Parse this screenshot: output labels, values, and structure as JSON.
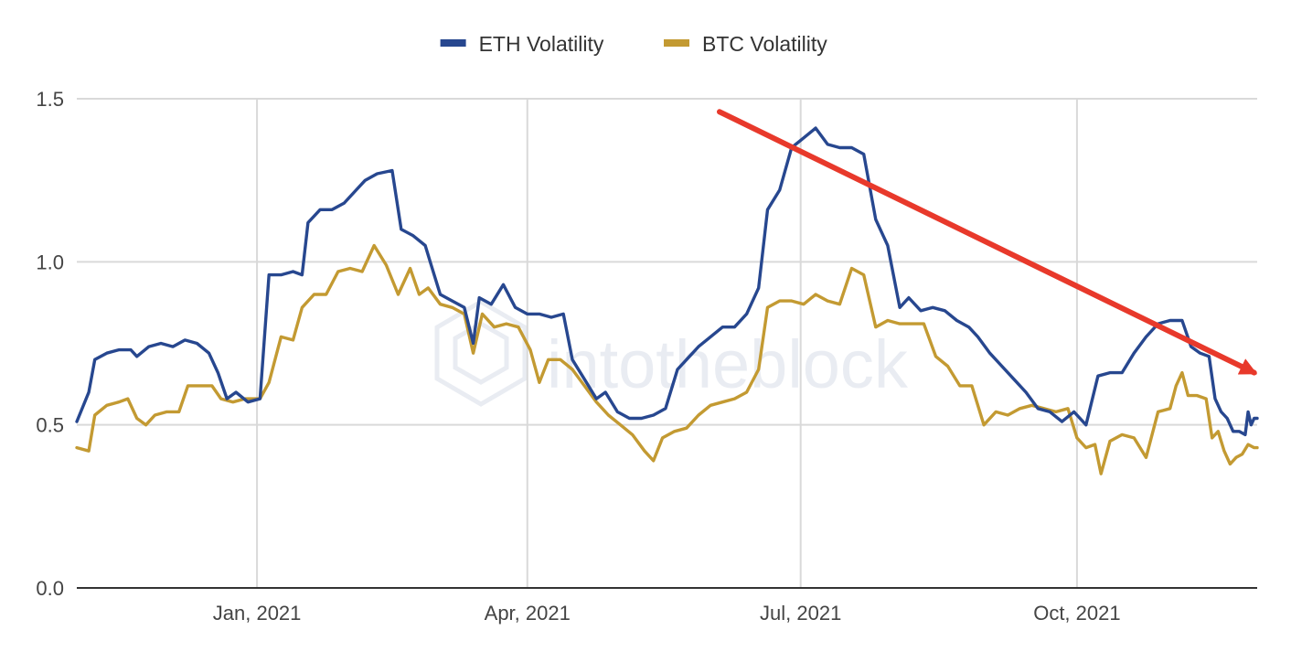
{
  "chart_data": {
    "type": "line",
    "title": "",
    "xlabel": "",
    "ylabel": "",
    "ylim": [
      0,
      1.5
    ],
    "y_ticks": [
      "0.0",
      "0.5",
      "1.0",
      "1.5"
    ],
    "xlim": [
      "2020-11-02",
      "2021-11-30"
    ],
    "x_ticks": [
      {
        "date": "2021-01-01",
        "label": "Jan, 2021"
      },
      {
        "date": "2021-04-01",
        "label": "Apr, 2021"
      },
      {
        "date": "2021-07-01",
        "label": "Jul, 2021"
      },
      {
        "date": "2021-10-01",
        "label": "Oct, 2021"
      }
    ],
    "grid": true,
    "legend_position": "top-center",
    "watermark": "intotheblock",
    "annotation": {
      "type": "arrow",
      "color": "#e8392b",
      "from": {
        "x": "2021-06-04",
        "y": 1.46
      },
      "to": {
        "x": "2021-11-29",
        "y": 0.66
      }
    },
    "series": [
      {
        "name": "ETH Volatility",
        "color": "#27478f",
        "points": [
          [
            "2020-11-02",
            0.51
          ],
          [
            "2020-11-06",
            0.6
          ],
          [
            "2020-11-08",
            0.7
          ],
          [
            "2020-11-12",
            0.72
          ],
          [
            "2020-11-16",
            0.73
          ],
          [
            "2020-11-20",
            0.73
          ],
          [
            "2020-11-22",
            0.71
          ],
          [
            "2020-11-26",
            0.74
          ],
          [
            "2020-11-30",
            0.75
          ],
          [
            "2020-12-04",
            0.74
          ],
          [
            "2020-12-08",
            0.76
          ],
          [
            "2020-12-12",
            0.75
          ],
          [
            "2020-12-16",
            0.72
          ],
          [
            "2020-12-19",
            0.66
          ],
          [
            "2020-12-22",
            0.58
          ],
          [
            "2020-12-25",
            0.6
          ],
          [
            "2020-12-29",
            0.57
          ],
          [
            "2021-01-02",
            0.58
          ],
          [
            "2021-01-05",
            0.96
          ],
          [
            "2021-01-09",
            0.96
          ],
          [
            "2021-01-13",
            0.97
          ],
          [
            "2021-01-16",
            0.96
          ],
          [
            "2021-01-18",
            1.12
          ],
          [
            "2021-01-22",
            1.16
          ],
          [
            "2021-01-26",
            1.16
          ],
          [
            "2021-01-30",
            1.18
          ],
          [
            "2021-02-03",
            1.22
          ],
          [
            "2021-02-06",
            1.25
          ],
          [
            "2021-02-10",
            1.27
          ],
          [
            "2021-02-15",
            1.28
          ],
          [
            "2021-02-18",
            1.1
          ],
          [
            "2021-02-22",
            1.08
          ],
          [
            "2021-02-26",
            1.05
          ],
          [
            "2021-02-28",
            0.99
          ],
          [
            "2021-03-03",
            0.9
          ],
          [
            "2021-03-07",
            0.88
          ],
          [
            "2021-03-11",
            0.86
          ],
          [
            "2021-03-14",
            0.75
          ],
          [
            "2021-03-16",
            0.89
          ],
          [
            "2021-03-20",
            0.87
          ],
          [
            "2021-03-24",
            0.93
          ],
          [
            "2021-03-28",
            0.86
          ],
          [
            "2021-04-01",
            0.84
          ],
          [
            "2021-04-05",
            0.84
          ],
          [
            "2021-04-09",
            0.83
          ],
          [
            "2021-04-13",
            0.84
          ],
          [
            "2021-04-16",
            0.7
          ],
          [
            "2021-04-20",
            0.64
          ],
          [
            "2021-04-24",
            0.58
          ],
          [
            "2021-04-27",
            0.6
          ],
          [
            "2021-05-01",
            0.54
          ],
          [
            "2021-05-05",
            0.52
          ],
          [
            "2021-05-09",
            0.52
          ],
          [
            "2021-05-13",
            0.53
          ],
          [
            "2021-05-17",
            0.55
          ],
          [
            "2021-05-21",
            0.67
          ],
          [
            "2021-05-24",
            0.7
          ],
          [
            "2021-05-28",
            0.74
          ],
          [
            "2021-06-01",
            0.77
          ],
          [
            "2021-06-05",
            0.8
          ],
          [
            "2021-06-09",
            0.8
          ],
          [
            "2021-06-13",
            0.84
          ],
          [
            "2021-06-17",
            0.92
          ],
          [
            "2021-06-20",
            1.16
          ],
          [
            "2021-06-24",
            1.22
          ],
          [
            "2021-06-28",
            1.35
          ],
          [
            "2021-07-02",
            1.38
          ],
          [
            "2021-07-06",
            1.41
          ],
          [
            "2021-07-10",
            1.36
          ],
          [
            "2021-07-14",
            1.35
          ],
          [
            "2021-07-18",
            1.35
          ],
          [
            "2021-07-22",
            1.33
          ],
          [
            "2021-07-26",
            1.13
          ],
          [
            "2021-07-30",
            1.05
          ],
          [
            "2021-08-03",
            0.86
          ],
          [
            "2021-08-06",
            0.89
          ],
          [
            "2021-08-10",
            0.85
          ],
          [
            "2021-08-14",
            0.86
          ],
          [
            "2021-08-18",
            0.85
          ],
          [
            "2021-08-22",
            0.82
          ],
          [
            "2021-08-26",
            0.8
          ],
          [
            "2021-08-29",
            0.77
          ],
          [
            "2021-09-02",
            0.72
          ],
          [
            "2021-09-06",
            0.68
          ],
          [
            "2021-09-10",
            0.64
          ],
          [
            "2021-09-14",
            0.6
          ],
          [
            "2021-09-18",
            0.55
          ],
          [
            "2021-09-22",
            0.54
          ],
          [
            "2021-09-26",
            0.51
          ],
          [
            "2021-09-30",
            0.54
          ],
          [
            "2021-10-04",
            0.5
          ],
          [
            "2021-10-08",
            0.65
          ],
          [
            "2021-10-12",
            0.66
          ],
          [
            "2021-10-16",
            0.66
          ],
          [
            "2021-10-20",
            0.72
          ],
          [
            "2021-10-24",
            0.77
          ],
          [
            "2021-10-28",
            0.81
          ],
          [
            "2021-11-01",
            0.82
          ],
          [
            "2021-11-05",
            0.82
          ],
          [
            "2021-11-08",
            0.74
          ],
          [
            "2021-11-11",
            0.72
          ],
          [
            "2021-11-14",
            0.71
          ],
          [
            "2021-11-16",
            0.58
          ],
          [
            "2021-11-18",
            0.54
          ],
          [
            "2021-11-20",
            0.52
          ],
          [
            "2021-11-22",
            0.48
          ],
          [
            "2021-11-24",
            0.48
          ],
          [
            "2021-11-26",
            0.47
          ],
          [
            "2021-11-27",
            0.54
          ],
          [
            "2021-11-28",
            0.5
          ],
          [
            "2021-11-29",
            0.52
          ],
          [
            "2021-11-30",
            0.52
          ]
        ]
      },
      {
        "name": "BTC Volatility",
        "color": "#c39a32",
        "points": [
          [
            "2020-11-02",
            0.43
          ],
          [
            "2020-11-06",
            0.42
          ],
          [
            "2020-11-08",
            0.53
          ],
          [
            "2020-11-12",
            0.56
          ],
          [
            "2020-11-16",
            0.57
          ],
          [
            "2020-11-19",
            0.58
          ],
          [
            "2020-11-22",
            0.52
          ],
          [
            "2020-11-25",
            0.5
          ],
          [
            "2020-11-28",
            0.53
          ],
          [
            "2020-12-02",
            0.54
          ],
          [
            "2020-12-06",
            0.54
          ],
          [
            "2020-12-09",
            0.62
          ],
          [
            "2020-12-13",
            0.62
          ],
          [
            "2020-12-17",
            0.62
          ],
          [
            "2020-12-20",
            0.58
          ],
          [
            "2020-12-24",
            0.57
          ],
          [
            "2020-12-28",
            0.58
          ],
          [
            "2021-01-02",
            0.58
          ],
          [
            "2021-01-05",
            0.63
          ],
          [
            "2021-01-09",
            0.77
          ],
          [
            "2021-01-13",
            0.76
          ],
          [
            "2021-01-16",
            0.86
          ],
          [
            "2021-01-20",
            0.9
          ],
          [
            "2021-01-24",
            0.9
          ],
          [
            "2021-01-28",
            0.97
          ],
          [
            "2021-02-01",
            0.98
          ],
          [
            "2021-02-05",
            0.97
          ],
          [
            "2021-02-09",
            1.05
          ],
          [
            "2021-02-13",
            0.99
          ],
          [
            "2021-02-17",
            0.9
          ],
          [
            "2021-02-21",
            0.98
          ],
          [
            "2021-02-24",
            0.9
          ],
          [
            "2021-02-27",
            0.92
          ],
          [
            "2021-03-03",
            0.87
          ],
          [
            "2021-03-07",
            0.86
          ],
          [
            "2021-03-11",
            0.84
          ],
          [
            "2021-03-14",
            0.72
          ],
          [
            "2021-03-17",
            0.84
          ],
          [
            "2021-03-21",
            0.8
          ],
          [
            "2021-03-25",
            0.81
          ],
          [
            "2021-03-29",
            0.8
          ],
          [
            "2021-04-02",
            0.73
          ],
          [
            "2021-04-05",
            0.63
          ],
          [
            "2021-04-08",
            0.7
          ],
          [
            "2021-04-12",
            0.7
          ],
          [
            "2021-04-16",
            0.67
          ],
          [
            "2021-04-20",
            0.62
          ],
          [
            "2021-04-24",
            0.57
          ],
          [
            "2021-04-28",
            0.53
          ],
          [
            "2021-05-02",
            0.5
          ],
          [
            "2021-05-06",
            0.47
          ],
          [
            "2021-05-10",
            0.42
          ],
          [
            "2021-05-13",
            0.39
          ],
          [
            "2021-05-16",
            0.46
          ],
          [
            "2021-05-20",
            0.48
          ],
          [
            "2021-05-24",
            0.49
          ],
          [
            "2021-05-28",
            0.53
          ],
          [
            "2021-06-01",
            0.56
          ],
          [
            "2021-06-05",
            0.57
          ],
          [
            "2021-06-09",
            0.58
          ],
          [
            "2021-06-13",
            0.6
          ],
          [
            "2021-06-17",
            0.67
          ],
          [
            "2021-06-20",
            0.86
          ],
          [
            "2021-06-24",
            0.88
          ],
          [
            "2021-06-28",
            0.88
          ],
          [
            "2021-07-02",
            0.87
          ],
          [
            "2021-07-06",
            0.9
          ],
          [
            "2021-07-10",
            0.88
          ],
          [
            "2021-07-14",
            0.87
          ],
          [
            "2021-07-18",
            0.98
          ],
          [
            "2021-07-22",
            0.96
          ],
          [
            "2021-07-26",
            0.8
          ],
          [
            "2021-07-30",
            0.82
          ],
          [
            "2021-08-03",
            0.81
          ],
          [
            "2021-08-07",
            0.81
          ],
          [
            "2021-08-11",
            0.81
          ],
          [
            "2021-08-15",
            0.71
          ],
          [
            "2021-08-19",
            0.68
          ],
          [
            "2021-08-23",
            0.62
          ],
          [
            "2021-08-27",
            0.62
          ],
          [
            "2021-08-31",
            0.5
          ],
          [
            "2021-09-04",
            0.54
          ],
          [
            "2021-09-08",
            0.53
          ],
          [
            "2021-09-12",
            0.55
          ],
          [
            "2021-09-16",
            0.56
          ],
          [
            "2021-09-20",
            0.55
          ],
          [
            "2021-09-24",
            0.54
          ],
          [
            "2021-09-28",
            0.55
          ],
          [
            "2021-10-01",
            0.46
          ],
          [
            "2021-10-04",
            0.43
          ],
          [
            "2021-10-07",
            0.44
          ],
          [
            "2021-10-09",
            0.35
          ],
          [
            "2021-10-12",
            0.45
          ],
          [
            "2021-10-16",
            0.47
          ],
          [
            "2021-10-20",
            0.46
          ],
          [
            "2021-10-24",
            0.4
          ],
          [
            "2021-10-28",
            0.54
          ],
          [
            "2021-11-01",
            0.55
          ],
          [
            "2021-11-03",
            0.62
          ],
          [
            "2021-11-05",
            0.66
          ],
          [
            "2021-11-07",
            0.59
          ],
          [
            "2021-11-10",
            0.59
          ],
          [
            "2021-11-13",
            0.58
          ],
          [
            "2021-11-15",
            0.46
          ],
          [
            "2021-11-17",
            0.48
          ],
          [
            "2021-11-19",
            0.42
          ],
          [
            "2021-11-21",
            0.38
          ],
          [
            "2021-11-23",
            0.4
          ],
          [
            "2021-11-25",
            0.41
          ],
          [
            "2021-11-27",
            0.44
          ],
          [
            "2021-11-29",
            0.43
          ],
          [
            "2021-11-30",
            0.43
          ]
        ]
      }
    ]
  }
}
